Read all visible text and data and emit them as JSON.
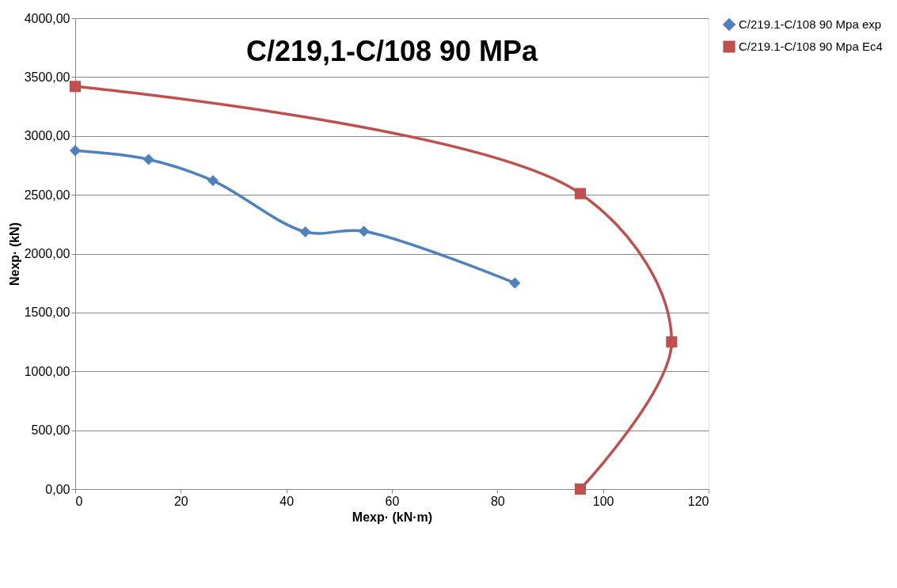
{
  "chart_data": {
    "type": "line",
    "title": "C/219,1-C/108 90 MPa",
    "xlabel": "Mexp· (kN·m)",
    "ylabel": "Nexp· (kN)",
    "xlim": [
      0,
      120
    ],
    "xticks": [
      0,
      20,
      40,
      60,
      80,
      100,
      120
    ],
    "ylim": [
      0,
      4000
    ],
    "yticks": [
      {
        "value": 0,
        "label": "0,00"
      },
      {
        "value": 500,
        "label": "500,00"
      },
      {
        "value": 1000,
        "label": "1000,00"
      },
      {
        "value": 1500,
        "label": "1500,00"
      },
      {
        "value": 2000,
        "label": "2000,00"
      },
      {
        "value": 2500,
        "label": "2500,00"
      },
      {
        "value": 3000,
        "label": "3000,00"
      },
      {
        "value": 3500,
        "label": "3500,00"
      },
      {
        "value": 4000,
        "label": "4000,00"
      }
    ],
    "grid": "y",
    "legend": "right",
    "series": [
      {
        "name": "C/219.1-C/108 90 Mpa exp",
        "color": "#4f81bd",
        "marker": "diamond",
        "x": [
          0,
          13.9,
          26.1,
          43.6,
          54.7,
          83.3
        ],
        "values": [
          2875,
          2800,
          2620,
          2185,
          2190,
          1750
        ]
      },
      {
        "name": "C/219.1-C/108 90 Mpa Ec4",
        "color": "#c0504d",
        "marker": "square",
        "x": [
          0,
          95.7,
          113,
          95.7
        ],
        "values": [
          3420,
          2510,
          1250,
          0
        ]
      }
    ]
  }
}
